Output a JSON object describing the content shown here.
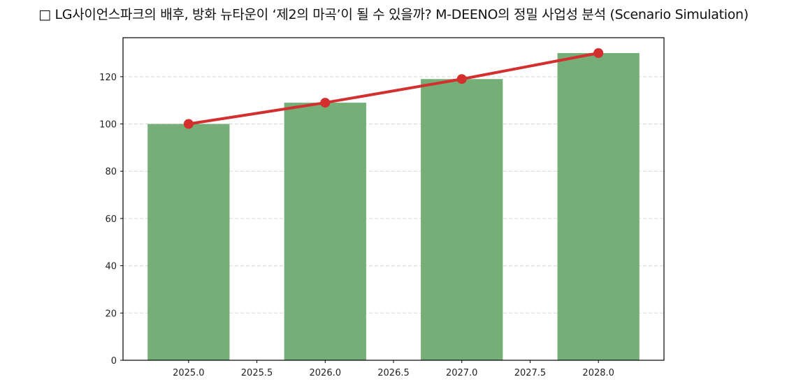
{
  "title": "□ LG사이언스파크의 배후, 방화 뉴타운이 ‘제2의 마곡’이 될 수 있을까? M-DEENO의 정밀 사업성 분석 (Scenario Simulation)",
  "colors": {
    "bar": "#75af77",
    "line": "#d32f2f",
    "grid": "#d9d9d9",
    "axis": "#000000"
  },
  "chart_data": {
    "type": "bar",
    "title": "□ LG사이언스파크의 배후, 방화 뉴타운이 ‘제2의 마곡’이 될 수 있을까? M-DEENO의 정밀 사업성 분석 (Scenario Simulation)",
    "xlabel": "",
    "ylabel": "",
    "categories": [
      2025,
      2026,
      2027,
      2028
    ],
    "series": [
      {
        "name": "bar",
        "type": "bar",
        "color": "#75af77",
        "values": [
          100,
          109,
          119,
          130
        ]
      },
      {
        "name": "line",
        "type": "line",
        "color": "#d32f2f",
        "marker": "circle",
        "values": [
          100,
          109,
          119,
          130
        ]
      }
    ],
    "xlim": [
      2024.52,
      2028.48
    ],
    "ylim": [
      0,
      136.5
    ],
    "xticks": [
      "2025.0",
      "2025.5",
      "2026.0",
      "2026.5",
      "2027.0",
      "2027.5",
      "2028.0"
    ],
    "yticks": [
      "0",
      "20",
      "40",
      "60",
      "80",
      "100",
      "120"
    ],
    "grid": {
      "y": true,
      "x": false,
      "style": "dashed"
    },
    "bar_width": 0.6,
    "legend": null
  }
}
